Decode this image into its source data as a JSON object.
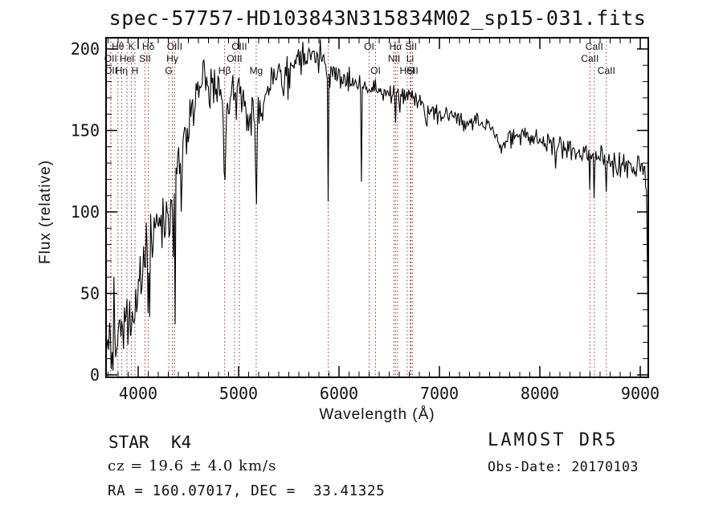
{
  "header": {
    "title": "spec-57757-HD103843N315834M02_sp15-031.fits"
  },
  "footer": {
    "object_type": "STAR",
    "spectral_class": "K4",
    "cz": "cz = 19.6 ± 4.0 km/s",
    "radec": "RA = 160.07017, DEC =  33.41325",
    "survey": "LAMOST DR5",
    "obs_date": "Obs-Date: 20170103"
  },
  "chart_data": {
    "type": "line",
    "title": "spec-57757-HD103843N315834M02_sp15-031.fits",
    "xlabel": "Wavelength (Å)",
    "ylabel": "Flux (relative)",
    "xlim": [
      3680,
      9080
    ],
    "ylim": [
      0,
      207
    ],
    "x_ticks": [
      4000,
      5000,
      6000,
      7000,
      8000,
      9000
    ],
    "x_minor_step": 100,
    "y_ticks": [
      0,
      50,
      100,
      150,
      200
    ],
    "y_minor_step": 10,
    "grid": false,
    "legend": null,
    "line_color": "#000000",
    "marker_line_color": "#993333",
    "spectral_markers": [
      {
        "label": "OII",
        "row": 2,
        "wavelength": 3726
      },
      {
        "label": "OII",
        "row": 3,
        "wavelength": 3729
      },
      {
        "label": "Hθ",
        "row": 1,
        "wavelength": 3798
      },
      {
        "label": "Hη",
        "row": 3,
        "wavelength": 3835
      },
      {
        "label": "HeI",
        "row": 2,
        "wavelength": 3889
      },
      {
        "label": "K",
        "row": 1,
        "wavelength": 3933
      },
      {
        "label": "H",
        "row": 3,
        "wavelength": 3968
      },
      {
        "label": "SII",
        "row": 2,
        "wavelength": 4068
      },
      {
        "label": "Hδ",
        "row": 1,
        "wavelength": 4101
      },
      {
        "label": "G",
        "row": 3,
        "wavelength": 4305
      },
      {
        "label": "Hγ",
        "row": 2,
        "wavelength": 4340
      },
      {
        "label": "OIII",
        "row": 1,
        "wavelength": 4363
      },
      {
        "label": "Hβ",
        "row": 3,
        "wavelength": 4861
      },
      {
        "label": "OIII",
        "row": 2,
        "wavelength": 4959
      },
      {
        "label": "OIII",
        "row": 1,
        "wavelength": 5007
      },
      {
        "label": "Mg",
        "row": 3,
        "wavelength": 5175
      },
      {
        "label": "",
        "row": 0,
        "wavelength": 5892
      },
      {
        "label": "OI",
        "row": 1,
        "wavelength": 6300
      },
      {
        "label": "OI",
        "row": 3,
        "wavelength": 6364
      },
      {
        "label": "NII",
        "row": 2,
        "wavelength": 6548
      },
      {
        "label": "Hα",
        "row": 1,
        "wavelength": 6563
      },
      {
        "label": "",
        "row": 0,
        "wavelength": 6583
      },
      {
        "label": "HeI",
        "row": 3,
        "wavelength": 6678
      },
      {
        "label": "Li",
        "row": 2,
        "wavelength": 6708
      },
      {
        "label": "SII",
        "row": 1,
        "wavelength": 6717
      },
      {
        "label": "SII",
        "row": 3,
        "wavelength": 6731
      },
      {
        "label": "CaII",
        "row": 2,
        "wavelength": 8498
      },
      {
        "label": "CaII",
        "row": 1,
        "wavelength": 8542
      },
      {
        "label": "CaII",
        "row": 3,
        "wavelength": 8662
      }
    ],
    "continuum": [
      [
        3680,
        5,
        8
      ],
      [
        3710,
        18,
        11
      ],
      [
        3740,
        22,
        12
      ],
      [
        3762,
        34,
        13
      ],
      [
        3790,
        18,
        10
      ],
      [
        3830,
        28,
        10
      ],
      [
        3870,
        33,
        10
      ],
      [
        3910,
        38,
        10
      ],
      [
        3950,
        43,
        10
      ],
      [
        3990,
        55,
        10
      ],
      [
        4030,
        66,
        11
      ],
      [
        4070,
        76,
        11
      ],
      [
        4110,
        83,
        11
      ],
      [
        4160,
        90,
        10
      ],
      [
        4220,
        98,
        10
      ],
      [
        4270,
        102,
        10
      ],
      [
        4330,
        112,
        10
      ],
      [
        4380,
        122,
        10
      ],
      [
        4440,
        138,
        10
      ],
      [
        4500,
        152,
        10
      ],
      [
        4560,
        166,
        9
      ],
      [
        4620,
        176,
        8
      ],
      [
        4660,
        182,
        8
      ],
      [
        4700,
        182,
        7
      ],
      [
        4750,
        180,
        8
      ],
      [
        4790,
        176,
        8
      ],
      [
        4830,
        168,
        8
      ],
      [
        4870,
        161,
        9
      ],
      [
        4910,
        168,
        7
      ],
      [
        4950,
        172,
        7
      ],
      [
        5000,
        171,
        7
      ],
      [
        5060,
        167,
        7
      ],
      [
        5110,
        162,
        8
      ],
      [
        5160,
        152,
        8
      ],
      [
        5205,
        158,
        8
      ],
      [
        5250,
        168,
        7
      ],
      [
        5300,
        176,
        7
      ],
      [
        5360,
        182,
        7
      ],
      [
        5420,
        185,
        7
      ],
      [
        5480,
        187,
        6
      ],
      [
        5550,
        190,
        6
      ],
      [
        5620,
        193,
        6
      ],
      [
        5700,
        196,
        5
      ],
      [
        5780,
        197,
        5
      ],
      [
        5840,
        196,
        5
      ],
      [
        5880,
        192,
        4
      ],
      [
        5930,
        186,
        4
      ],
      [
        5990,
        183,
        4
      ],
      [
        6060,
        181,
        4
      ],
      [
        6150,
        179,
        4
      ],
      [
        6250,
        177,
        4
      ],
      [
        6350,
        176,
        3
      ],
      [
        6450,
        174,
        3
      ],
      [
        6550,
        173,
        3
      ],
      [
        6650,
        172,
        3
      ],
      [
        6750,
        170,
        3
      ],
      [
        6830,
        167,
        3
      ],
      [
        6880,
        161,
        4
      ],
      [
        6930,
        163,
        3
      ],
      [
        7000,
        162,
        3
      ],
      [
        7100,
        160,
        3
      ],
      [
        7200,
        158,
        4
      ],
      [
        7300,
        156,
        3
      ],
      [
        7400,
        154,
        3
      ],
      [
        7500,
        152,
        3
      ],
      [
        7570,
        147,
        3
      ],
      [
        7620,
        143,
        3
      ],
      [
        7680,
        146,
        3
      ],
      [
        7750,
        149,
        3
      ],
      [
        7850,
        147,
        3
      ],
      [
        7950,
        145,
        3
      ],
      [
        8050,
        143,
        3
      ],
      [
        8150,
        141,
        4
      ],
      [
        8250,
        139,
        4
      ],
      [
        8350,
        137,
        3
      ],
      [
        8450,
        136,
        3
      ],
      [
        8550,
        134,
        3
      ],
      [
        8650,
        133,
        4
      ],
      [
        8750,
        131,
        4
      ],
      [
        8850,
        129,
        5
      ],
      [
        8950,
        128,
        5
      ],
      [
        9020,
        129,
        4
      ],
      [
        9050,
        126,
        4
      ],
      [
        9064,
        112,
        4
      ],
      [
        9074,
        45,
        2
      ],
      [
        9080,
        4,
        0
      ]
    ],
    "absorption_lines": [
      [
        3933,
        20,
        7
      ],
      [
        3968,
        20,
        7
      ],
      [
        4101,
        18,
        7
      ],
      [
        4305,
        20,
        9
      ],
      [
        4340,
        15,
        6
      ],
      [
        4368,
        80,
        2.5
      ],
      [
        4861,
        25,
        8
      ],
      [
        5175,
        58,
        5
      ],
      [
        5892,
        86,
        4
      ],
      [
        6225,
        88,
        2.2
      ],
      [
        6563,
        18,
        5
      ],
      [
        6870,
        10,
        6
      ],
      [
        7620,
        7,
        8
      ],
      [
        8498,
        16,
        3.5
      ],
      [
        8542,
        27,
        3.5
      ],
      [
        8662,
        26,
        3.5
      ]
    ],
    "noise_seed": 20170103
  }
}
